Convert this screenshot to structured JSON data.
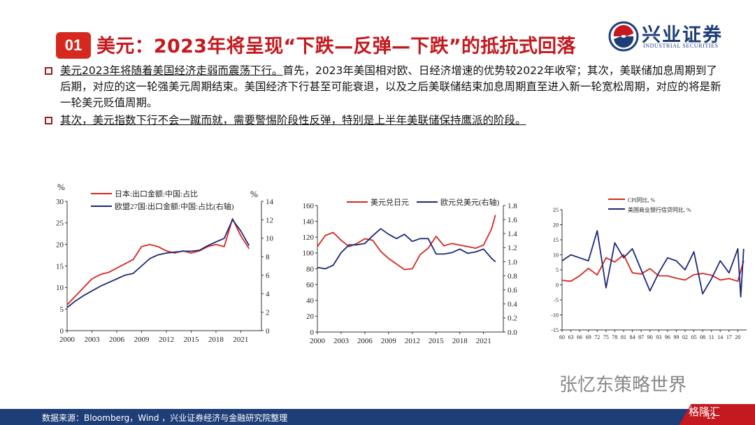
{
  "header": {
    "badge": "01",
    "title": "美元：2023年将呈现“下跌—反弹—下跌”的抵抗式回落",
    "logo_cn": "兴业证券",
    "logo_en": "INDUSTRIAL SECURITIES"
  },
  "bullets": [
    {
      "underlined": "美元2023年将随着美国经济走弱而震荡下行。",
      "rest": "首先，2023年美国相对欧、日经济增速的优势较2022年收窄；其次，美联储加息周期到了后期，对应的这一轮强美元周期结束。美国经济下行甚至可能衰退，以及之后美联储结束加息周期直至进入新一轮宽松周期，对应的将是新一轮美元贬值周期。"
    },
    {
      "underlined": "其次，美元指数下行不会一蹴而就，需要警惕阶段性反弹，特别是上半年美联储保持鹰派的阶段。",
      "rest": ""
    }
  ],
  "colors": {
    "red": "#d6281f",
    "navy": "#1c2a78",
    "footer": "#1e3e78"
  },
  "chart_data": [
    {
      "type": "line",
      "left_unit": "%",
      "right_unit": "%",
      "series": [
        {
          "name": "日本:出口金额:中国:占比",
          "axis": "left",
          "color": "#d6281f",
          "x": [
            2000,
            2001,
            2002,
            2003,
            2004,
            2005,
            2006,
            2007,
            2008,
            2009,
            2010,
            2011,
            2012,
            2013,
            2014,
            2015,
            2016,
            2017,
            2018,
            2019,
            2020,
            2021,
            2022
          ],
          "y": [
            6,
            8,
            10,
            12,
            13,
            13.5,
            14.5,
            15.5,
            16.5,
            19.5,
            20,
            19.5,
            18.5,
            18,
            18.5,
            18,
            18.5,
            19.5,
            20,
            19.5,
            26,
            22,
            19
          ]
        },
        {
          "name": "欧盟27国:出口金额:中国:占比(右轴)",
          "axis": "right",
          "color": "#1c2a78",
          "x": [
            2000,
            2001,
            2002,
            2003,
            2004,
            2005,
            2006,
            2007,
            2008,
            2009,
            2010,
            2011,
            2012,
            2013,
            2014,
            2015,
            2016,
            2017,
            2018,
            2019,
            2020,
            2021,
            2022
          ],
          "y": [
            2.5,
            3.2,
            3.8,
            4.3,
            4.8,
            5.2,
            5.6,
            6,
            6.2,
            7,
            7.8,
            8.2,
            8.4,
            8.5,
            8.6,
            8.6,
            8.7,
            9.2,
            9.6,
            10,
            12,
            10.8,
            9.2
          ]
        }
      ],
      "xticks": [
        "2000",
        "2003",
        "2006",
        "2009",
        "2012",
        "2015",
        "2018",
        "2021"
      ],
      "xtick_values": [
        2000,
        2003,
        2006,
        2009,
        2012,
        2015,
        2018,
        2021
      ],
      "xlim": [
        2000,
        2023.5
      ],
      "yleft": {
        "min": 0,
        "max": 30,
        "ticks": [
          "0",
          "5",
          "10",
          "15",
          "20",
          "25",
          "30"
        ]
      },
      "yright": {
        "min": 0,
        "max": 14,
        "ticks": [
          "0",
          "2",
          "4",
          "6",
          "8",
          "10",
          "12",
          "14"
        ]
      }
    },
    {
      "type": "line",
      "series": [
        {
          "name": "美元兑日元",
          "axis": "left",
          "color": "#d6281f",
          "x": [
            2000,
            2001,
            2002,
            2003,
            2004,
            2005,
            2006,
            2007,
            2008,
            2009,
            2010,
            2011,
            2012,
            2013,
            2014,
            2015,
            2016,
            2017,
            2018,
            2019,
            2020,
            2021,
            2022,
            2022.5
          ],
          "y": [
            108,
            122,
            126,
            116,
            108,
            112,
            118,
            116,
            102,
            93,
            86,
            79,
            80,
            98,
            106,
            121,
            109,
            112,
            110,
            108,
            106,
            110,
            130,
            148
          ]
        },
        {
          "name": "欧元兑美元(右轴)",
          "axis": "right",
          "color": "#1c2a78",
          "x": [
            2000,
            2001,
            2002,
            2003,
            2004,
            2005,
            2006,
            2007,
            2008,
            2009,
            2010,
            2011,
            2012,
            2013,
            2014,
            2015,
            2016,
            2017,
            2018,
            2019,
            2020,
            2021,
            2022,
            2022.5
          ],
          "y": [
            0.92,
            0.9,
            0.95,
            1.13,
            1.24,
            1.24,
            1.26,
            1.37,
            1.47,
            1.39,
            1.33,
            1.39,
            1.29,
            1.33,
            1.33,
            1.11,
            1.11,
            1.13,
            1.18,
            1.12,
            1.14,
            1.18,
            1.05,
            1.0
          ]
        }
      ],
      "xticks": [
        "2000",
        "2003",
        "2006",
        "2009",
        "2012",
        "2015",
        "2018",
        "2021"
      ],
      "xtick_values": [
        2000,
        2003,
        2006,
        2009,
        2012,
        2015,
        2018,
        2021
      ],
      "xlim": [
        2000,
        2023.5
      ],
      "yleft": {
        "min": 0,
        "max": 160,
        "ticks": [
          "0",
          "20",
          "40",
          "60",
          "80",
          "100",
          "120",
          "140",
          "160"
        ]
      },
      "yright": {
        "min": 0,
        "max": 1.8,
        "ticks": [
          "0.0",
          "0.2",
          "0.4",
          "0.6",
          "0.8",
          "1.0",
          "1.2",
          "1.4",
          "1.6",
          "1.8"
        ]
      }
    },
    {
      "type": "line",
      "series": [
        {
          "name": "CPI同比, %",
          "axis": "left",
          "color": "#d6281f",
          "x": [
            1960,
            1963,
            1966,
            1969,
            1972,
            1975,
            1978,
            1981,
            1984,
            1987,
            1990,
            1993,
            1996,
            1999,
            2002,
            2005,
            2008,
            2011,
            2014,
            2017,
            2020,
            2022
          ],
          "y": [
            1.5,
            1.2,
            3,
            5.5,
            3.3,
            9,
            7.6,
            10,
            4,
            3.6,
            5.4,
            3,
            3,
            2.2,
            1.6,
            3.4,
            3.8,
            3.2,
            1.6,
            2.1,
            1.2,
            8
          ]
        },
        {
          "name": "美国商业银行信贷同比, %",
          "axis": "left",
          "color": "#1c2a78",
          "x": [
            1960,
            1963,
            1966,
            1969,
            1972,
            1975,
            1978,
            1981,
            1984,
            1987,
            1990,
            1993,
            1996,
            1999,
            2002,
            2005,
            2008,
            2011,
            2014,
            2017,
            2020,
            2021,
            2022
          ],
          "y": [
            8,
            10,
            9,
            8,
            18,
            -1,
            14,
            9,
            12,
            5,
            -2,
            4,
            9,
            8,
            5,
            11,
            -3,
            2,
            8,
            4,
            12,
            -4,
            12
          ]
        }
      ],
      "xticks": [
        "60",
        "63",
        "66",
        "69",
        "72",
        "75",
        "78",
        "81",
        "84",
        "87",
        "90",
        "93",
        "96",
        "99",
        "02",
        "05",
        "08",
        "11",
        "14",
        "17",
        "20"
      ],
      "xtick_values": [
        1960,
        1963,
        1966,
        1969,
        1972,
        1975,
        1978,
        1981,
        1984,
        1987,
        1990,
        1993,
        1996,
        1999,
        2002,
        2005,
        2008,
        2011,
        2014,
        2017,
        2020
      ],
      "xlim": [
        1960,
        2023
      ],
      "yleft": {
        "min": -15,
        "max": 25,
        "ticks": [
          "-15",
          "-10",
          "-5",
          "0",
          "5",
          "10",
          "15",
          "20",
          "25"
        ]
      }
    }
  ],
  "footer": {
    "source": "数据来源：Bloomberg，Wind ，兴业证券经济与金融研究院整理",
    "page": "12"
  },
  "watermark": {
    "text": "张忆东策略世界",
    "brand": "格隆汇"
  }
}
